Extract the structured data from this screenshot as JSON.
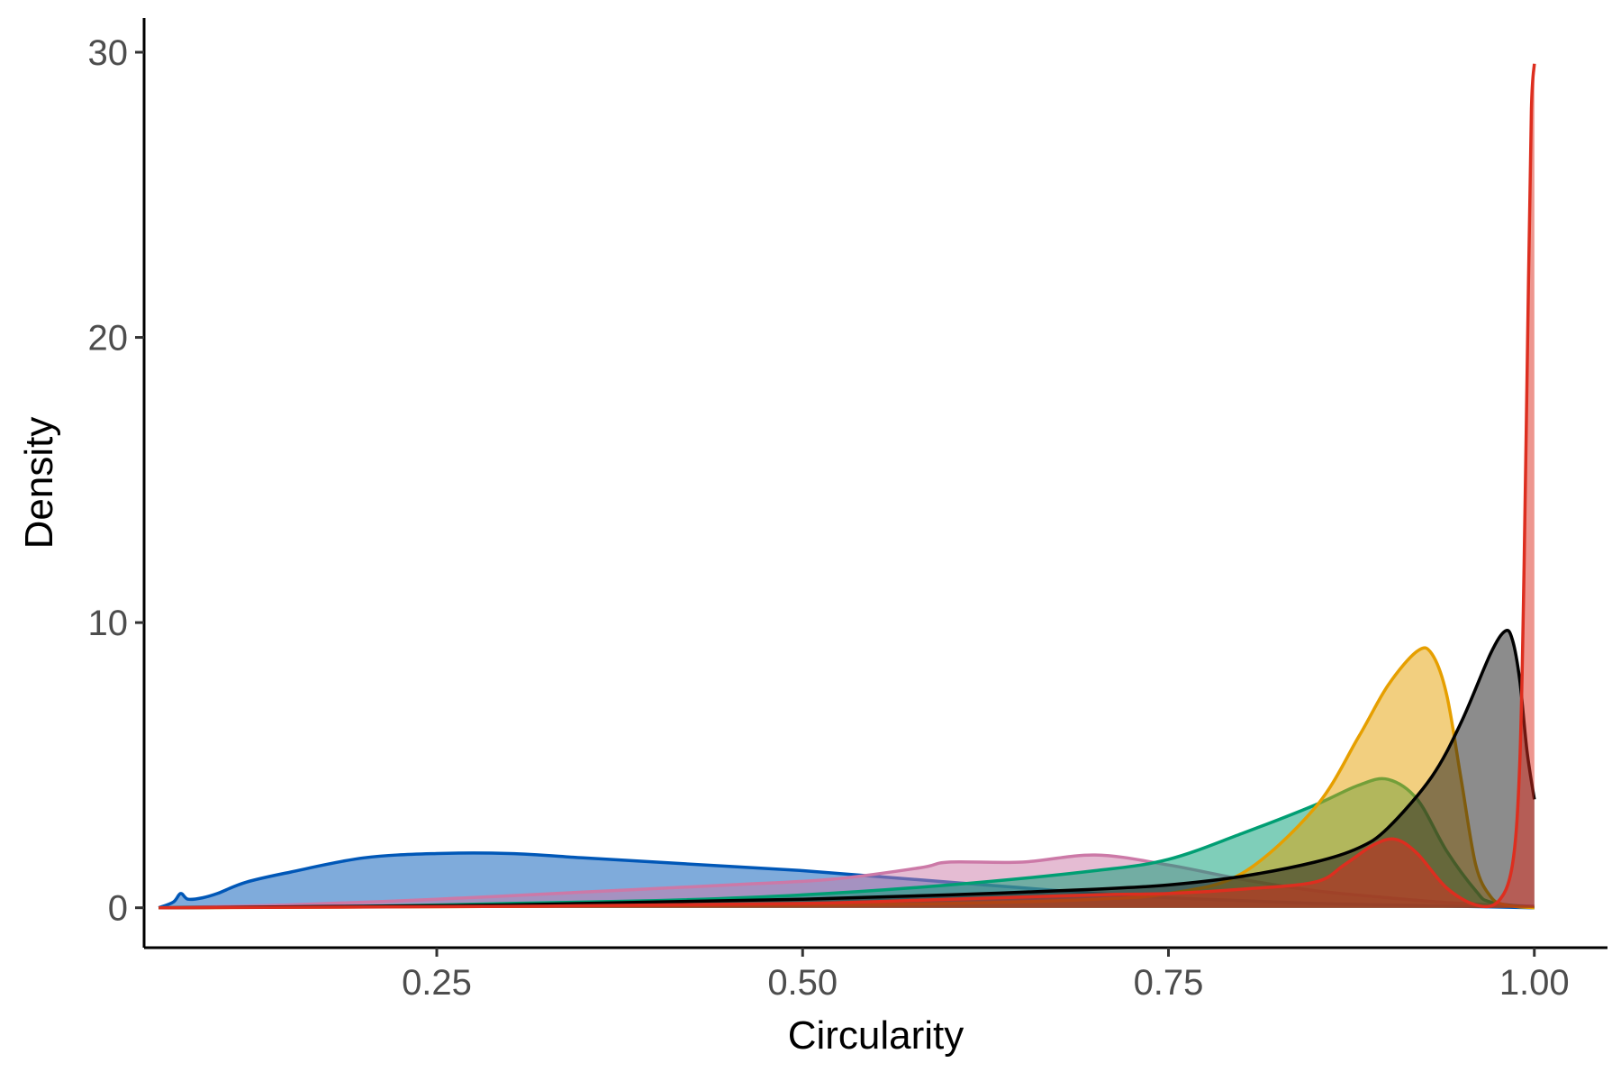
{
  "chart_data": {
    "type": "area",
    "title": "",
    "xlabel": "Circularity",
    "ylabel": "Density",
    "xlim": [
      0.05,
      1.05
    ],
    "ylim": [
      -1.4,
      31.2
    ],
    "x_ticks": [
      0.25,
      0.5,
      0.75,
      1.0
    ],
    "x_tick_labels": [
      "0.25",
      "0.50",
      "0.75",
      "1.00"
    ],
    "y_ticks": [
      0,
      10,
      20,
      30
    ],
    "y_tick_labels": [
      "0",
      "10",
      "20",
      "30"
    ],
    "grid": false,
    "legend": "none",
    "series": [
      {
        "color": "#0057b7",
        "fill": "#0057b7",
        "x": [
          0.06,
          0.07,
          0.075,
          0.08,
          0.09,
          0.1,
          0.12,
          0.15,
          0.2,
          0.25,
          0.3,
          0.35,
          0.4,
          0.45,
          0.5,
          0.55,
          0.6,
          0.65,
          0.7,
          0.75,
          0.8,
          0.85,
          0.9,
          0.95,
          1.0
        ],
        "y": [
          0,
          0.2,
          0.5,
          0.3,
          0.35,
          0.5,
          0.9,
          1.25,
          1.75,
          1.9,
          1.9,
          1.75,
          1.6,
          1.45,
          1.3,
          1.1,
          0.9,
          0.7,
          0.5,
          0.35,
          0.25,
          0.15,
          0.1,
          0.05,
          0
        ]
      },
      {
        "color": "#cc79a7",
        "fill": "#cc79a7",
        "x": [
          0.06,
          0.15,
          0.25,
          0.35,
          0.45,
          0.52,
          0.58,
          0.6,
          0.65,
          0.7,
          0.75,
          0.8,
          0.85,
          0.9,
          0.95,
          1.0
        ],
        "y": [
          0,
          0.1,
          0.3,
          0.55,
          0.8,
          1.0,
          1.4,
          1.6,
          1.6,
          1.85,
          1.5,
          1.0,
          0.6,
          0.35,
          0.15,
          0.05
        ]
      },
      {
        "color": "#009e73",
        "fill": "#009e73",
        "x": [
          0.06,
          0.2,
          0.3,
          0.4,
          0.5,
          0.6,
          0.7,
          0.75,
          0.8,
          0.85,
          0.88,
          0.9,
          0.92,
          0.94,
          0.96,
          0.97,
          1.0
        ],
        "y": [
          0,
          0.05,
          0.15,
          0.25,
          0.45,
          0.8,
          1.3,
          1.7,
          2.6,
          3.6,
          4.3,
          4.5,
          3.8,
          2.0,
          0.6,
          0.2,
          0
        ]
      },
      {
        "color": "#e69f00",
        "fill": "#e69f00",
        "x": [
          0.06,
          0.3,
          0.5,
          0.6,
          0.7,
          0.75,
          0.8,
          0.85,
          0.88,
          0.9,
          0.92,
          0.93,
          0.94,
          0.95,
          0.96,
          0.97,
          0.98,
          1.0
        ],
        "y": [
          0,
          0.05,
          0.1,
          0.15,
          0.3,
          0.5,
          1.2,
          3.5,
          6.0,
          7.8,
          9.0,
          8.9,
          7.5,
          4.5,
          1.5,
          0.4,
          0.1,
          0
        ]
      },
      {
        "color": "#000000",
        "fill": "#1a1a1a",
        "x": [
          0.06,
          0.2,
          0.3,
          0.4,
          0.5,
          0.6,
          0.7,
          0.75,
          0.8,
          0.85,
          0.88,
          0.9,
          0.93,
          0.95,
          0.97,
          0.98,
          0.985,
          0.99,
          0.995,
          1.0
        ],
        "y": [
          0,
          0.05,
          0.1,
          0.2,
          0.3,
          0.45,
          0.65,
          0.8,
          1.1,
          1.6,
          2.1,
          2.8,
          4.6,
          6.5,
          8.9,
          9.7,
          9.4,
          8.0,
          5.5,
          3.8
        ]
      },
      {
        "color": "#dd2e1f",
        "fill": "#dd2e1f",
        "x": [
          0.06,
          0.3,
          0.5,
          0.6,
          0.7,
          0.75,
          0.8,
          0.85,
          0.87,
          0.89,
          0.905,
          0.92,
          0.94,
          0.96,
          0.975,
          0.985,
          0.99,
          0.993,
          0.996,
          0.998,
          1.0
        ],
        "y": [
          0,
          0.05,
          0.15,
          0.3,
          0.45,
          0.5,
          0.65,
          0.9,
          1.5,
          2.2,
          2.4,
          1.9,
          0.7,
          0.1,
          0.2,
          1.5,
          5.0,
          12.0,
          22.0,
          28.0,
          29.6
        ]
      }
    ]
  }
}
